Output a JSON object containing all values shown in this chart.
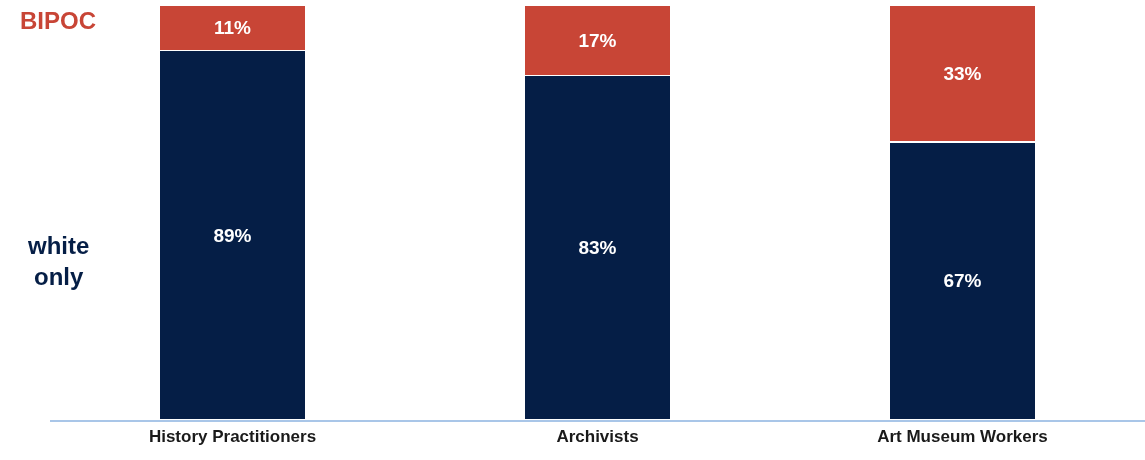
{
  "chart_data": {
    "type": "bar",
    "stacked": true,
    "categories": [
      "History Practitioners",
      "Archivists",
      "Art Museum Workers"
    ],
    "series": [
      {
        "name": "white only",
        "color": "#051e46",
        "values": [
          89,
          83,
          67
        ],
        "value_labels": [
          "89%",
          "83%",
          "67%"
        ]
      },
      {
        "name": "BIPOC",
        "color": "#c84536",
        "values": [
          11,
          17,
          33
        ],
        "value_labels": [
          "11%",
          "17%",
          "33%"
        ]
      }
    ],
    "legend": "left"
  }
}
